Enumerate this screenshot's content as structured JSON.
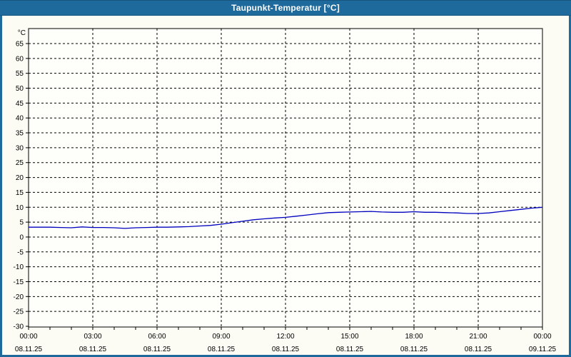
{
  "window": {
    "title": "Taupunkt-Temperatur [°C]"
  },
  "colors": {
    "titlebar_bg": "#1e6a9c",
    "window_border": "#1e6a9c",
    "background": "#fcfcf4",
    "plot_background": "#fefefa",
    "grid": "#000000",
    "axis": "#000000",
    "series_line": "#0000bf",
    "title_text": "#ffffff"
  },
  "chart_data": {
    "type": "line",
    "title": "Taupunkt-Temperatur [°C]",
    "ylabel": "°C",
    "xlabel": "",
    "unit_label": "°C",
    "ylim": [
      -30,
      70
    ],
    "xlim_hours": [
      0,
      24
    ],
    "y_ticks": [
      65,
      60,
      55,
      50,
      45,
      40,
      35,
      30,
      25,
      20,
      15,
      10,
      5,
      0,
      -5,
      -10,
      -15,
      -20,
      -25,
      -30
    ],
    "x_ticks": [
      {
        "hour": 0,
        "time": "00:00",
        "date": "08.11.25"
      },
      {
        "hour": 3,
        "time": "03:00",
        "date": "08.11.25"
      },
      {
        "hour": 6,
        "time": "06:00",
        "date": "08.11.25"
      },
      {
        "hour": 9,
        "time": "09:00",
        "date": "08.11.25"
      },
      {
        "hour": 12,
        "time": "12:00",
        "date": "08.11.25"
      },
      {
        "hour": 15,
        "time": "15:00",
        "date": "08.11.25"
      },
      {
        "hour": 18,
        "time": "18:00",
        "date": "08.11.25"
      },
      {
        "hour": 21,
        "time": "21:00",
        "date": "08.11.25"
      },
      {
        "hour": 24,
        "time": "00:00",
        "date": "09.11.25"
      }
    ],
    "grid": {
      "x_interval_hours": 3,
      "y_interval": 5,
      "style": "dashed",
      "minor_x_tick_hours": 1
    },
    "legend": "none",
    "series": [
      {
        "name": "Taupunkt-Temperatur",
        "color": "#0000bf",
        "points_hour_value": [
          [
            0,
            3.3
          ],
          [
            0.5,
            3.3
          ],
          [
            1,
            3.3
          ],
          [
            1.5,
            3.2
          ],
          [
            2,
            3.1
          ],
          [
            2.5,
            3.4
          ],
          [
            3,
            3.2
          ],
          [
            3.5,
            3.2
          ],
          [
            4,
            3.1
          ],
          [
            4.5,
            2.9
          ],
          [
            5,
            3.1
          ],
          [
            5.5,
            3.2
          ],
          [
            6,
            3.3
          ],
          [
            6.5,
            3.3
          ],
          [
            7,
            3.4
          ],
          [
            7.5,
            3.5
          ],
          [
            8,
            3.7
          ],
          [
            8.5,
            3.9
          ],
          [
            9,
            4.3
          ],
          [
            9.5,
            4.8
          ],
          [
            10,
            5.3
          ],
          [
            10.5,
            5.8
          ],
          [
            11,
            6.1
          ],
          [
            11.5,
            6.4
          ],
          [
            12,
            6.6
          ],
          [
            12.5,
            7.0
          ],
          [
            13,
            7.4
          ],
          [
            13.5,
            7.8
          ],
          [
            14,
            8.2
          ],
          [
            14.5,
            8.3
          ],
          [
            15,
            8.4
          ],
          [
            15.5,
            8.5
          ],
          [
            16,
            8.6
          ],
          [
            16.5,
            8.4
          ],
          [
            17,
            8.3
          ],
          [
            17.5,
            8.3
          ],
          [
            18,
            8.5
          ],
          [
            18.5,
            8.3
          ],
          [
            19,
            8.3
          ],
          [
            19.5,
            8.2
          ],
          [
            20,
            8.1
          ],
          [
            20.5,
            7.9
          ],
          [
            21,
            7.9
          ],
          [
            21.5,
            8.1
          ],
          [
            22,
            8.5
          ],
          [
            22.5,
            8.9
          ],
          [
            23,
            9.3
          ],
          [
            23.5,
            9.7
          ],
          [
            24,
            10.0
          ]
        ]
      }
    ]
  }
}
